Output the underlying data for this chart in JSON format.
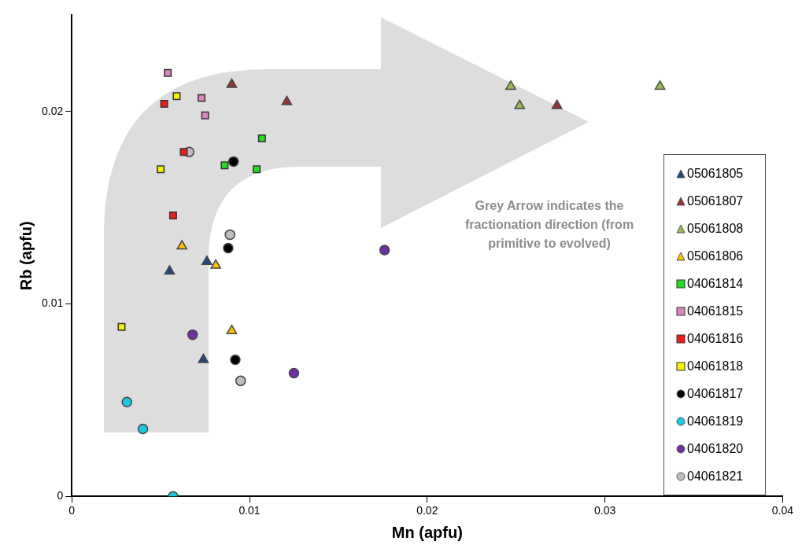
{
  "chart_data": {
    "type": "scatter",
    "xlabel": "Mn (apfu)",
    "ylabel": "Rb (apfu)",
    "xlim": [
      0,
      0.04
    ],
    "xticks": [
      0,
      0.01,
      0.02,
      0.03,
      0.04
    ],
    "ylim": [
      0,
      0.025
    ],
    "yticks": [
      0,
      0.01,
      0.02
    ],
    "grid": false,
    "legend": "right",
    "annotations": [
      "Grey Arrow indicates the fractionation direction (from primitive to evolved)"
    ],
    "series": [
      {
        "name": "05061805",
        "color": "#1f497d",
        "marker": "triangle",
        "x": [
          0.0055,
          0.0076,
          0.0074
        ],
        "values": [
          0.0117,
          0.0122,
          0.0071
        ]
      },
      {
        "name": "05061807",
        "color": "#953735",
        "marker": "triangle",
        "x": [
          0.009,
          0.0121,
          0.0273
        ],
        "values": [
          0.0214,
          0.0205,
          0.0203
        ]
      },
      {
        "name": "05061808",
        "color": "#9bbb59",
        "marker": "triangle",
        "x": [
          0.0247,
          0.0252,
          0.0331
        ],
        "values": [
          0.0213,
          0.0203,
          0.0213
        ]
      },
      {
        "name": "05061806",
        "color": "#ffc000",
        "marker": "triangle",
        "x": [
          0.0062,
          0.0081,
          0.009
        ],
        "values": [
          0.013,
          0.012,
          0.0086
        ]
      },
      {
        "name": "04061814",
        "color": "#22dd22",
        "marker": "square",
        "x": [
          0.0107,
          0.0086,
          0.0104
        ],
        "values": [
          0.0186,
          0.0172,
          0.017
        ]
      },
      {
        "name": "04061815",
        "color": "#d986bd",
        "marker": "square",
        "x": [
          0.0054,
          0.0073,
          0.0075
        ],
        "values": [
          0.022,
          0.0207,
          0.0198
        ]
      },
      {
        "name": "04061816",
        "color": "#ee1c1c",
        "marker": "square",
        "x": [
          0.0052,
          0.0063,
          0.0057
        ],
        "values": [
          0.0204,
          0.0179,
          0.0146
        ]
      },
      {
        "name": "04061818",
        "color": "#f2f200",
        "marker": "square",
        "x": [
          0.0059,
          0.005,
          0.0028
        ],
        "values": [
          0.0208,
          0.017,
          0.0088
        ]
      },
      {
        "name": "04061817",
        "color": "#000000",
        "marker": "circle",
        "x": [
          0.0091,
          0.0088,
          0.0092
        ],
        "values": [
          0.0174,
          0.0129,
          0.0071
        ]
      },
      {
        "name": "04061819",
        "color": "#1cc8dc",
        "marker": "circle",
        "x": [
          0.0031,
          0.004,
          0.0057
        ],
        "values": [
          0.0049,
          0.0035,
          0
        ]
      },
      {
        "name": "04061820",
        "color": "#7030a0",
        "marker": "circle",
        "x": [
          0.0176,
          0.0068,
          0.0125
        ],
        "values": [
          0.0128,
          0.0084,
          0.0064
        ]
      },
      {
        "name": "04061821",
        "color": "#bfbfbf",
        "marker": "circle",
        "x": [
          0.0066,
          0.0089,
          0.0095
        ],
        "values": [
          0.0179,
          0.0136,
          0.006
        ]
      }
    ]
  }
}
